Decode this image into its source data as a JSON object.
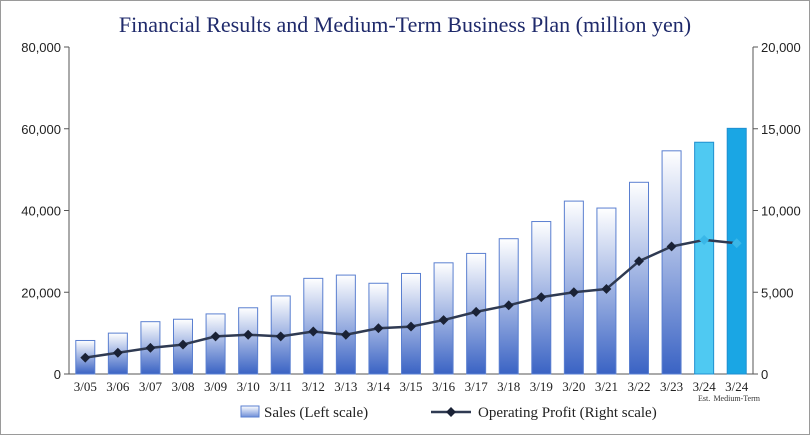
{
  "chart_data": {
    "type": "bar",
    "title": "Financial Results and Medium-Term Business Plan (million yen)",
    "categories": [
      "3/05",
      "3/06",
      "3/07",
      "3/08",
      "3/09",
      "3/10",
      "3/11",
      "3/12",
      "3/13",
      "3/14",
      "3/15",
      "3/16",
      "3/17",
      "3/18",
      "3/19",
      "3/20",
      "3/21",
      "3/22",
      "3/23",
      "3/24",
      "3/24"
    ],
    "category_sublabels": [
      "",
      "",
      "",
      "",
      "",
      "",
      "",
      "",
      "",
      "",
      "",
      "",
      "",
      "",
      "",
      "",
      "",
      "",
      "",
      "Est.",
      "Medium-Term"
    ],
    "left_axis": {
      "ylim": [
        0,
        80000
      ],
      "ticks": [
        "0",
        "20,000",
        "40,000",
        "60,000",
        "80,000"
      ],
      "tick_values": [
        0,
        20000,
        40000,
        60000,
        80000
      ]
    },
    "right_axis": {
      "ylim": [
        0,
        20000
      ],
      "ticks": [
        "0",
        "5,000",
        "10,000",
        "15,000",
        "20,000"
      ],
      "tick_values": [
        0,
        5000,
        10000,
        15000,
        20000
      ]
    },
    "grid": false,
    "legend_position": "bottom",
    "series": [
      {
        "name": "Sales (Left scale)",
        "type": "bar",
        "axis": "left",
        "values": [
          8200,
          10000,
          12800,
          13400,
          14700,
          16200,
          19100,
          23400,
          24200,
          22200,
          24600,
          27200,
          29500,
          33100,
          37300,
          42300,
          40600,
          46900,
          54600,
          56700,
          60100
        ],
        "highlight_colors": {
          "19": "#4fc9f2",
          "20": "#1aa6e4"
        }
      },
      {
        "name": "Operating Profit (Right scale)",
        "type": "line",
        "axis": "right",
        "values": [
          1000,
          1300,
          1600,
          1800,
          2300,
          2400,
          2300,
          2600,
          2400,
          2800,
          2900,
          3300,
          3800,
          4200,
          4700,
          5000,
          5200,
          6900,
          7800,
          8200,
          8000
        ]
      }
    ],
    "colors": {
      "bar_top": "#ffffff",
      "bar_bottom": "#3a63c4",
      "bar_border": "#5a7fd0",
      "line": "#2f3a52",
      "marker": "#1a2236",
      "marker_highlight": "#39b7e8"
    }
  }
}
